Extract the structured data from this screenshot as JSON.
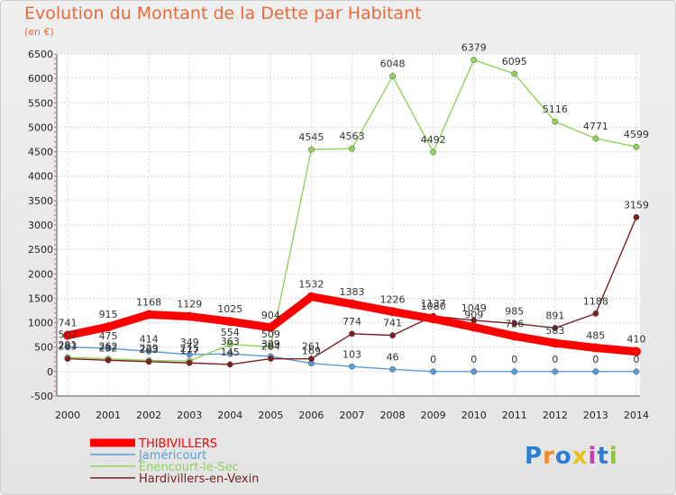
{
  "chart_data": {
    "type": "line",
    "title": "Evolution du Montant de la Dette par Habitant",
    "subtitle": "(en €)",
    "x": [
      "2000",
      "2001",
      "2002",
      "2003",
      "2004",
      "2005",
      "2006",
      "2007",
      "2008",
      "2009",
      "2010",
      "2011",
      "2012",
      "2013",
      "2014"
    ],
    "ylim": [
      -500,
      6500
    ],
    "yticks": [
      -500,
      0,
      500,
      1000,
      1500,
      2000,
      2500,
      3000,
      3500,
      4000,
      4500,
      5000,
      5500,
      6000,
      6500
    ],
    "grid": true,
    "legend_position": "bottom-left",
    "series": [
      {
        "name": "THIBIVILLERS",
        "color": "#ff0000",
        "values": [
          741,
          915,
          1168,
          1129,
          1025,
          904,
          1532,
          1383,
          1226,
          1080,
          909,
          726,
          583,
          485,
          410
        ],
        "labels": [
          "741",
          "915",
          "1168",
          "1129",
          "1025",
          "904",
          "1532",
          "1383",
          "1226",
          "1080",
          "909",
          "726",
          "583",
          "485",
          "410"
        ]
      },
      {
        "name": "Jaméricourt",
        "color": "#5b9bd5",
        "values": [
          502,
          475,
          414,
          349,
          363,
          309,
          169,
          103,
          46,
          0,
          0,
          0,
          0,
          0,
          0
        ],
        "labels": [
          "502",
          "475",
          "414",
          "349",
          "363",
          "309",
          "169",
          "103",
          "46",
          "0",
          "0",
          "0",
          "0",
          "0",
          "0"
        ]
      },
      {
        "name": "Énencourt-le-Sec",
        "color": "#8fd35a",
        "values": [
          291,
          262,
          229,
          215,
          554,
          509,
          4545,
          4563,
          6048,
          4492,
          6379,
          6095,
          5116,
          4771,
          4599
        ],
        "labels": [
          "291",
          "262",
          "229",
          "215",
          "554",
          "509",
          "4545",
          "4563",
          "6048",
          "4492",
          "6379",
          "6095",
          "5116",
          "4771",
          "4599"
        ]
      },
      {
        "name": "Hardivillers-en-Vexin",
        "color": "#7a2020",
        "values": [
          263,
          232,
          203,
          177,
          145,
          264,
          261,
          774,
          741,
          1137,
          1049,
          985,
          891,
          1188,
          3159
        ],
        "labels": [
          "263",
          "232",
          "203",
          "177",
          "145",
          "264",
          "261",
          "774",
          "741",
          "1137",
          "1049",
          "985",
          "891",
          "1188",
          "3159"
        ]
      }
    ]
  },
  "logo": {
    "text": "Proxiti"
  }
}
